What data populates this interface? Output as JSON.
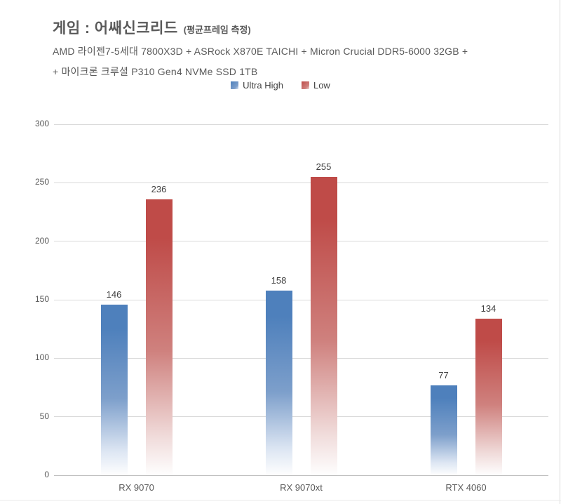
{
  "header": {
    "title": "게임 : 어쌔신크리드",
    "title_note": "(평균프레임 측정)",
    "subtitle_line1": "AMD 라이젠7-5세대 7800X3D + ASRock X870E TAICHI + Micron Crucial DDR5-6000 32GB +",
    "subtitle_line2": "+ 마이크론 크루셜 P310 Gen4 NVMe SSD 1TB"
  },
  "chart_data": {
    "type": "bar",
    "title": "게임 : 어쌔신크리드 (평균프레임 측정)",
    "categories": [
      "RX 9070",
      "RX 9070xt",
      "RTX 4060"
    ],
    "series": [
      {
        "name": "Ultra High",
        "color": "#4e80bc",
        "color_mid": "#7d9fcb",
        "color_light": "#dde6f3",
        "values": [
          146,
          158,
          77
        ]
      },
      {
        "name": "Low",
        "color": "#bf4b48",
        "color_mid": "#cf817e",
        "color_light": "#f0dbda",
        "values": [
          236,
          255,
          134
        ]
      }
    ],
    "xlabel": "",
    "ylabel": "",
    "ylim": [
      0,
      300
    ],
    "yticks": [
      0,
      50,
      100,
      150,
      200,
      250,
      300
    ],
    "grid": true,
    "legend_position": "top-center",
    "bar_fill_style": "vertical-fade-to-white"
  },
  "colors": {
    "grid_line": "#d9d9d9",
    "zero_line": "#bfbfbf",
    "heading_text": "#595959",
    "value_label_text": "#404040",
    "background": "#ffffff"
  }
}
